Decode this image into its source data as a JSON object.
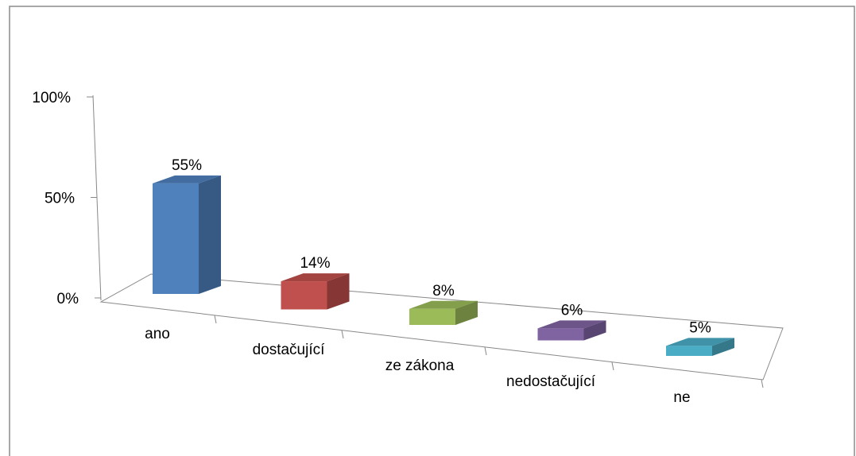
{
  "chart_data": {
    "type": "bar3d",
    "categories": [
      "ano",
      "dostačující",
      "ze zákona",
      "nedostačující",
      "ne"
    ],
    "values": [
      55,
      14,
      8,
      6,
      5
    ],
    "value_labels": [
      "55%",
      "14%",
      "8%",
      "6%",
      "5%"
    ],
    "colors": [
      "#4f81bd",
      "#c0504d",
      "#9bbb59",
      "#8064a2",
      "#4bacc6"
    ],
    "ylim": [
      0,
      100
    ],
    "yticks": [
      {
        "value": 0,
        "label": "0%"
      },
      {
        "value": 50,
        "label": "50%"
      },
      {
        "value": 100,
        "label": "100%"
      }
    ]
  }
}
